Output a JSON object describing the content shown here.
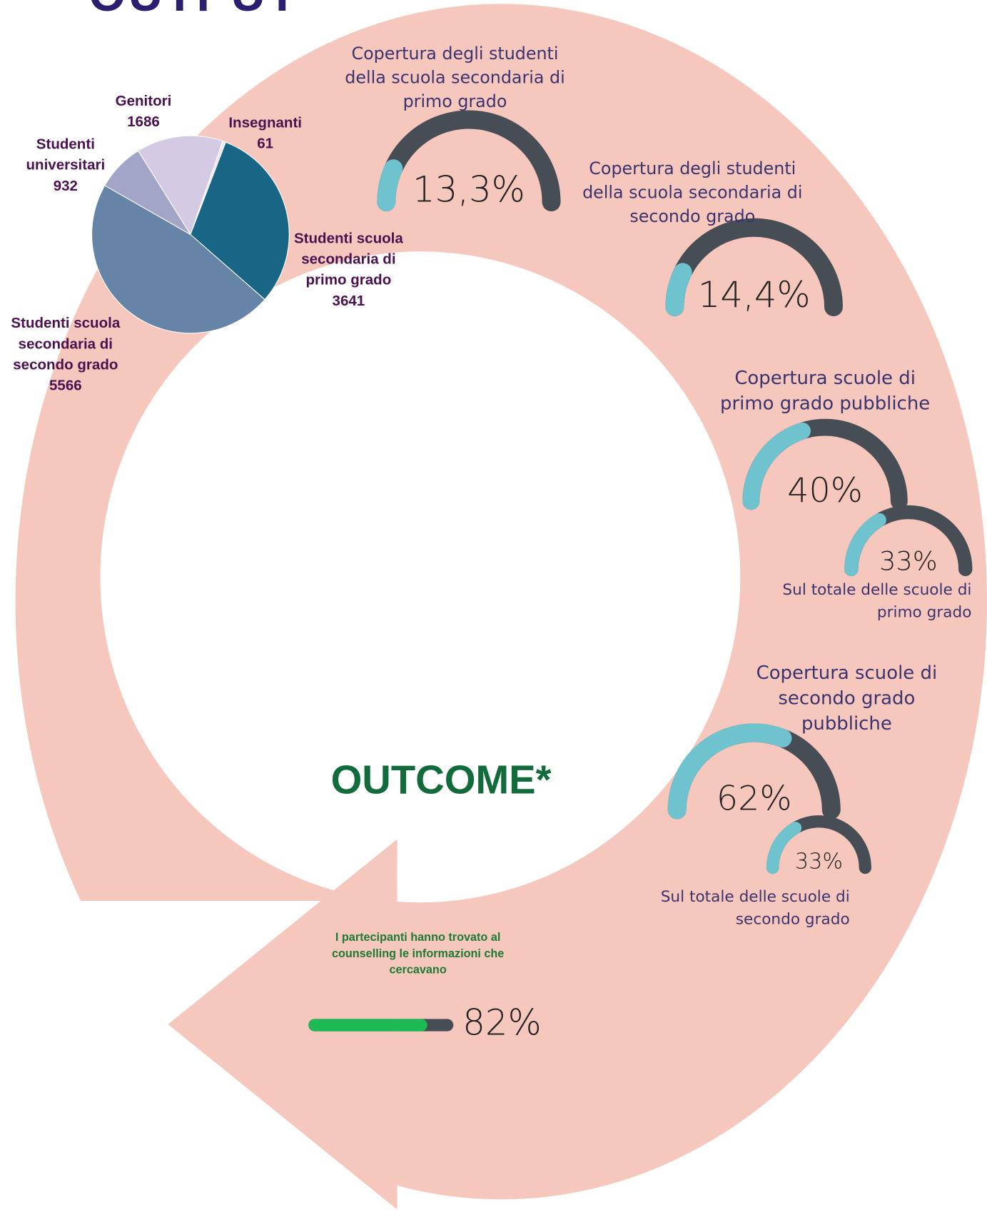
{
  "title": "OUTPUT",
  "outcome_title": "OUTCOME*",
  "chart_data": [
    {
      "type": "pie",
      "categories": [
        "Genitori",
        "Insegnanti",
        "Studenti scuola secondaria di primo grado",
        "Studenti scuola secondaria di secondo grado",
        "Studenti universitari"
      ],
      "values": [
        1686,
        61,
        3641,
        5566,
        932
      ],
      "colors": [
        "#d4cae4",
        "#ece9f3",
        "#186585",
        "#6683a8",
        "#a3a5c8"
      ]
    },
    {
      "type": "gauge",
      "title": "Copertura degli studenti della scuola secondaria di primo grado",
      "value": 13.3,
      "value_label": "13,3%",
      "range": [
        0,
        100
      ],
      "color": "#6fc3cf",
      "track_color": "#474d55"
    },
    {
      "type": "gauge",
      "title": "Copertura degli studenti della scuola secondaria di secondo grado",
      "value": 14.4,
      "value_label": "14,4%",
      "range": [
        0,
        100
      ],
      "color": "#6fc3cf",
      "track_color": "#474d55"
    },
    {
      "type": "gauge",
      "title": "Copertura scuole di primo grado pubbliche",
      "value": 40,
      "value_label": "40%",
      "range": [
        0,
        100
      ],
      "color": "#6fc3cf",
      "track_color": "#474d55"
    },
    {
      "type": "gauge",
      "caption": "Sul totale delle scuole di primo grado",
      "value": 33,
      "value_label": "33%",
      "range": [
        0,
        100
      ],
      "color": "#6fc3cf",
      "track_color": "#474d55"
    },
    {
      "type": "gauge",
      "title": "Copertura scuole di secondo grado pubbliche",
      "value": 62,
      "value_label": "62%",
      "range": [
        0,
        100
      ],
      "color": "#6fc3cf",
      "track_color": "#474d55"
    },
    {
      "type": "gauge",
      "caption": "Sul totale delle scuole di secondo grado",
      "value": 33,
      "value_label": "33%",
      "range": [
        0,
        100
      ],
      "color": "#6fc3cf",
      "track_color": "#474d55"
    },
    {
      "type": "progress",
      "title": "I partecipanti hanno trovato al counselling le informazioni che cercavano",
      "value": 82,
      "value_label": "82%",
      "range": [
        0,
        100
      ],
      "color": "#1db954",
      "track_color": "#474d55"
    }
  ]
}
